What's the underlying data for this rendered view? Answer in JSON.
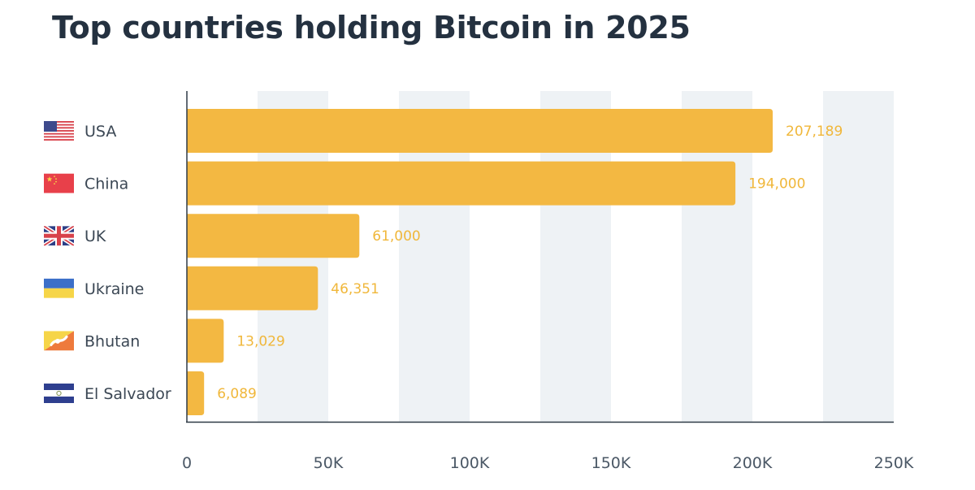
{
  "chart_data": {
    "type": "bar",
    "orientation": "horizontal",
    "title": "Top countries holding Bitcoin in 2025",
    "categories": [
      "USA",
      "China",
      "UK",
      "Ukraine",
      "Bhutan",
      "El Salvador"
    ],
    "values": [
      207189,
      194000,
      61000,
      46351,
      13029,
      6089
    ],
    "value_labels": [
      "207,189",
      "194,000",
      "61,000",
      "46,351",
      "13,029",
      "6,089"
    ],
    "flags": [
      "usa-flag-icon",
      "china-flag-icon",
      "uk-flag-icon",
      "ukraine-flag-icon",
      "bhutan-flag-icon",
      "el-salvador-flag-icon"
    ],
    "x_ticks": [
      0,
      50000,
      100000,
      150000,
      200000,
      250000
    ],
    "x_tick_labels": [
      "0",
      "50K",
      "100K",
      "150K",
      "200K",
      "250K"
    ],
    "xlim": [
      0,
      250000
    ],
    "xlabel": "",
    "ylabel": "",
    "grid": "alternating vertical bands",
    "legend": "none",
    "colors": {
      "bar": "#F3B842",
      "value_label": "#F0B73A",
      "band": "#EEF2F5",
      "axis": "#2E3A46",
      "title": "#243140"
    }
  }
}
